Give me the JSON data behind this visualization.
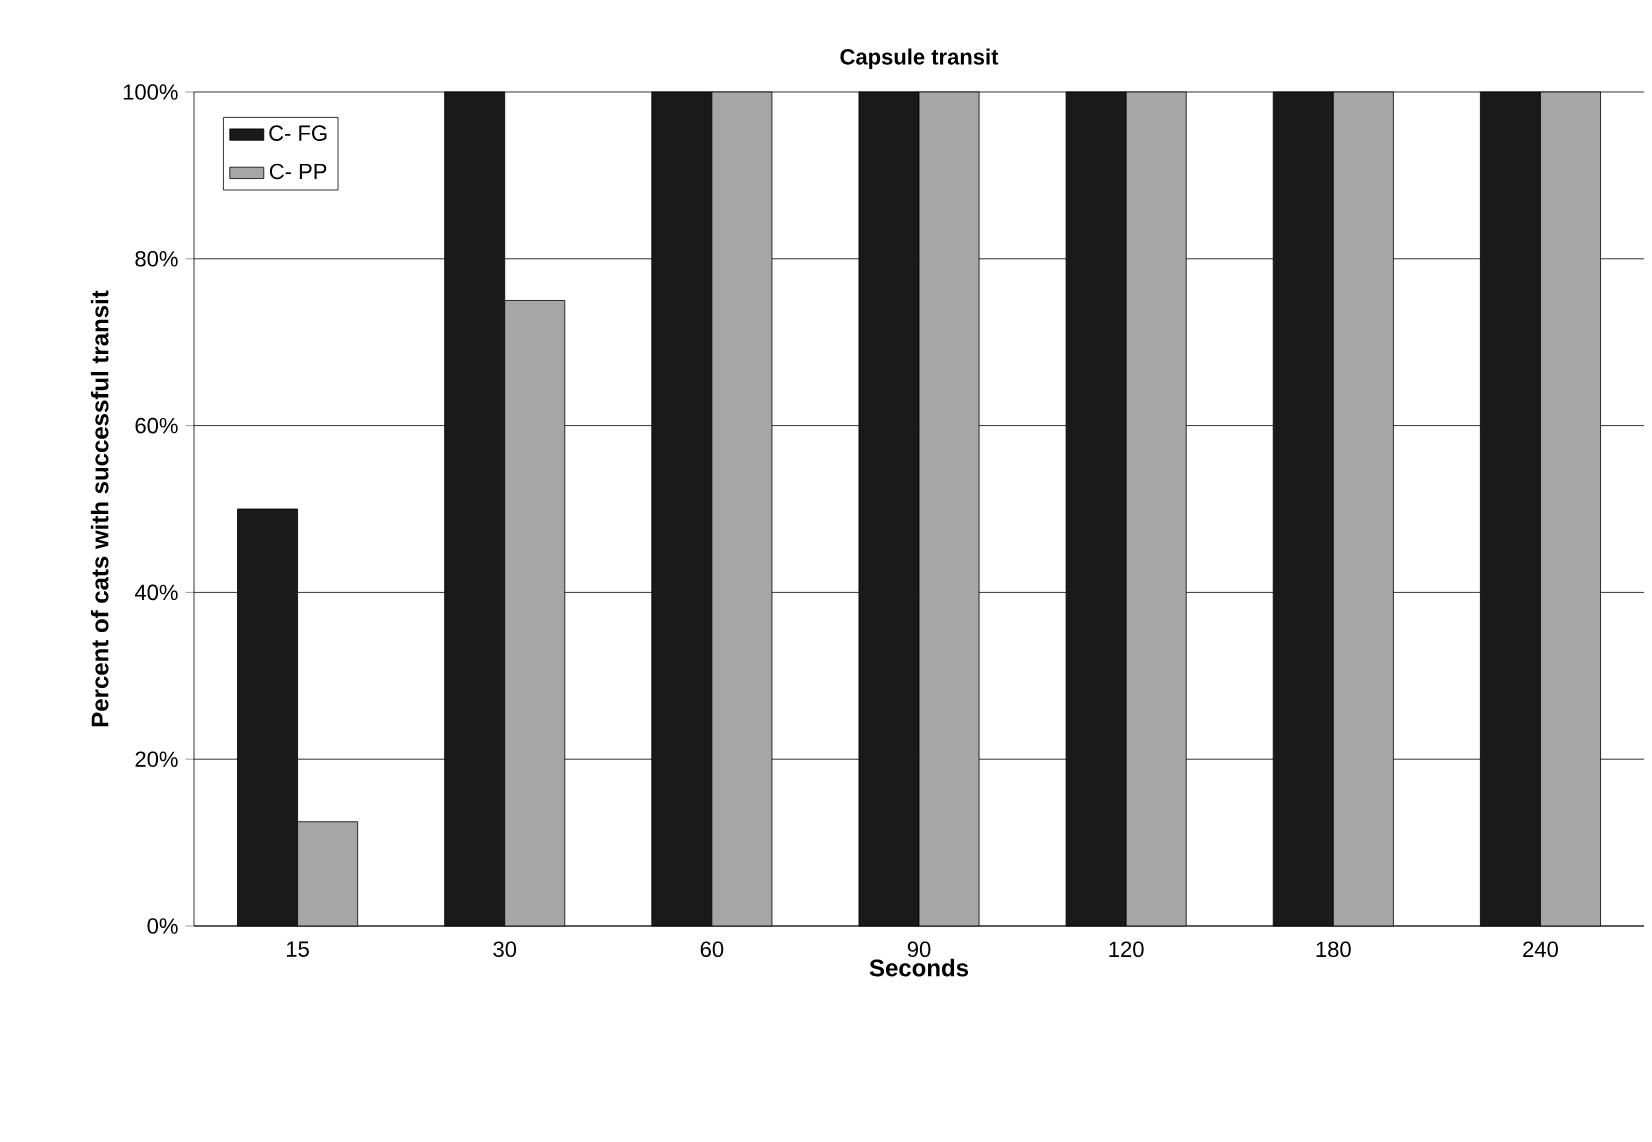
{
  "chart_data": {
    "type": "bar",
    "title": "Capsule transit",
    "xlabel": "Seconds",
    "ylabel": "Percent of cats with successful transit",
    "categories": [
      "15",
      "30",
      "60",
      "90",
      "120",
      "180",
      "240"
    ],
    "series": [
      {
        "name": "C- FG",
        "color": "#1a1a1a",
        "values": [
          50,
          100,
          100,
          100,
          100,
          100,
          100
        ]
      },
      {
        "name": "C- PP",
        "color": "#a6a6a6",
        "values": [
          12.5,
          75,
          100,
          100,
          100,
          100,
          100
        ]
      }
    ],
    "ylim": [
      0,
      100
    ],
    "yticks": [
      {
        "value": 0,
        "label": "0%"
      },
      {
        "value": 20,
        "label": "20%"
      },
      {
        "value": 40,
        "label": "40%"
      },
      {
        "value": 60,
        "label": "60%"
      },
      {
        "value": 80,
        "label": "80%"
      },
      {
        "value": 100,
        "label": "100%"
      }
    ],
    "grid": "y",
    "legend": "top left"
  }
}
